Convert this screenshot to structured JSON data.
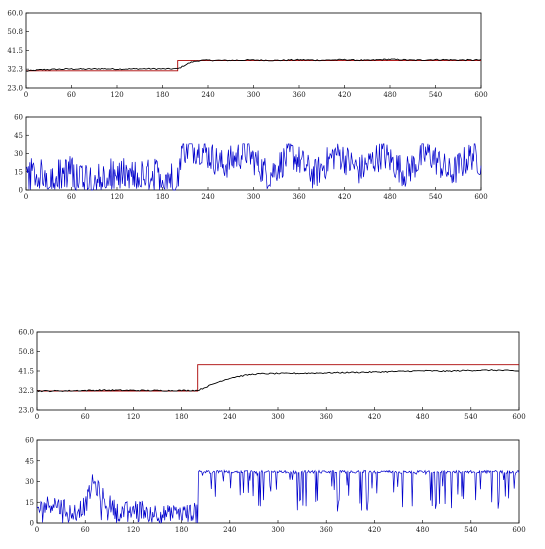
{
  "chart_data": [
    {
      "type": "line",
      "title": "",
      "xlabel": "",
      "ylabel": "",
      "xlim": [
        0,
        600
      ],
      "ylim": [
        23.0,
        60.0
      ],
      "xticks": [
        "0",
        "60",
        "120",
        "180",
        "240",
        "300",
        "360",
        "420",
        "480",
        "540",
        "600"
      ],
      "yticks": [
        "23.0",
        "32.3",
        "41.5",
        "50.8",
        "60.0"
      ],
      "grid": false,
      "legend": "none",
      "series": [
        {
          "role": "setpoint",
          "color": "#aa0000",
          "x": [
            0,
            200,
            200,
            600
          ],
          "y": [
            31.5,
            31.5,
            36.5,
            36.5
          ]
        },
        {
          "role": "process-value",
          "color": "#000000",
          "x": [
            0,
            20,
            40,
            60,
            80,
            100,
            120,
            140,
            160,
            180,
            200,
            205,
            210,
            215,
            220,
            225,
            230,
            240,
            260,
            280,
            300,
            330,
            360,
            390,
            420,
            450,
            480,
            510,
            540,
            570,
            600
          ],
          "y": [
            31.3,
            32.0,
            32.2,
            32.4,
            32.3,
            32.5,
            32.3,
            32.4,
            32.5,
            32.4,
            32.5,
            33.3,
            34.4,
            35.3,
            35.9,
            36.3,
            36.6,
            36.7,
            36.6,
            36.7,
            36.8,
            36.6,
            36.9,
            36.7,
            37.0,
            36.6,
            37.2,
            36.7,
            37.0,
            36.8,
            36.8
          ]
        }
      ]
    },
    {
      "type": "line",
      "title": "",
      "xlabel": "",
      "ylabel": "",
      "xlim": [
        0,
        600
      ],
      "ylim": [
        0,
        60
      ],
      "xticks": [
        "0",
        "60",
        "120",
        "180",
        "240",
        "300",
        "360",
        "420",
        "480",
        "540",
        "600"
      ],
      "yticks": [
        "0",
        "15",
        "30",
        "45",
        "60"
      ],
      "grid": false,
      "legend": "none",
      "series": [
        {
          "role": "controller-output",
          "color": "#0000cc",
          "style": "noisy",
          "x": [
            0,
            30,
            60,
            90,
            120,
            150,
            180,
            200,
            205,
            230,
            260,
            290,
            320,
            350,
            380,
            410,
            440,
            470,
            500,
            530,
            560,
            590,
            600
          ],
          "y": [
            14,
            12,
            16,
            10,
            14,
            12,
            14,
            8,
            34,
            34,
            20,
            32,
            12,
            30,
            12,
            31,
            16,
            30,
            14,
            31,
            13,
            30,
            22
          ]
        }
      ]
    },
    {
      "type": "line",
      "title": "",
      "xlabel": "",
      "ylabel": "",
      "xlim": [
        0,
        600
      ],
      "ylim": [
        23.0,
        60.0
      ],
      "xticks": [
        "0",
        "60",
        "120",
        "180",
        "240",
        "300",
        "360",
        "420",
        "480",
        "540",
        "600"
      ],
      "yticks": [
        "23.0",
        "32.3",
        "41.5",
        "50.8",
        "60.0"
      ],
      "grid": false,
      "legend": "none",
      "series": [
        {
          "role": "setpoint",
          "color": "#aa0000",
          "x": [
            0,
            200,
            200,
            600
          ],
          "y": [
            32.0,
            32.0,
            44.5,
            44.5
          ]
        },
        {
          "role": "process-value",
          "color": "#000000",
          "x": [
            0,
            40,
            80,
            120,
            160,
            200,
            210,
            220,
            230,
            240,
            250,
            260,
            270,
            280,
            300,
            330,
            360,
            390,
            420,
            450,
            480,
            510,
            540,
            570,
            600
          ],
          "y": [
            32.0,
            32.1,
            32.4,
            32.3,
            32.2,
            32.3,
            33.8,
            35.4,
            36.9,
            38.1,
            38.9,
            39.5,
            40.0,
            40.2,
            40.3,
            40.4,
            40.6,
            40.8,
            41.0,
            41.3,
            41.6,
            41.4,
            41.8,
            41.9,
            41.5
          ]
        }
      ]
    },
    {
      "type": "line",
      "title": "",
      "xlabel": "",
      "ylabel": "",
      "xlim": [
        0,
        600
      ],
      "ylim": [
        0,
        60
      ],
      "xticks": [
        "0",
        "60",
        "120",
        "180",
        "240",
        "300",
        "360",
        "420",
        "480",
        "540",
        "600"
      ],
      "yticks": [
        "0",
        "15",
        "30",
        "45",
        "60"
      ],
      "grid": false,
      "legend": "none",
      "series": [
        {
          "role": "controller-output",
          "color": "#0000cc",
          "style": "noisy-saturated",
          "x": [
            0,
            20,
            40,
            60,
            70,
            80,
            100,
            130,
            160,
            199,
            200,
            201,
            300,
            400,
            500,
            600
          ],
          "y": [
            10,
            15,
            8,
            12,
            30,
            20,
            8,
            10,
            6,
            8,
            0,
            38,
            38,
            38,
            38,
            38
          ]
        }
      ]
    }
  ]
}
